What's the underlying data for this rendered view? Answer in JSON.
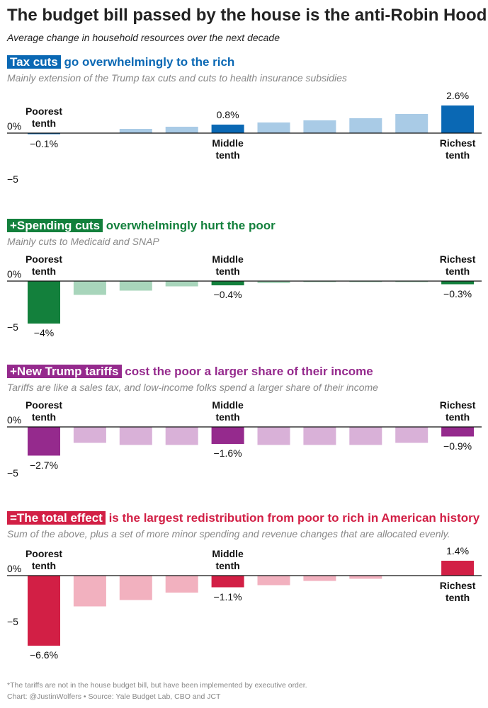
{
  "title": "The budget bill passed by the house is the anti-Robin Hood",
  "subtitle": "Average change in household resources over the next decade",
  "notes": [
    "*The tariffs are not in the house budget bill, but have been implemented by executive order.",
    "Chart: @JustinWolfers • Source: Yale Budget Lab, CBO and JCT"
  ],
  "chart_data": [
    {
      "type": "bar",
      "title_tag": "Tax cuts",
      "title": "go overwhelmingly to the rich",
      "subtitle": "Mainly extension of the Trump tax cuts and cuts to health insurance subsidies",
      "categories": [
        "Poorest tenth",
        null,
        null,
        null,
        "Middle tenth",
        null,
        null,
        null,
        null,
        "Richest tenth"
      ],
      "values": [
        -0.1,
        0,
        0.4,
        0.6,
        0.8,
        1.0,
        1.2,
        1.4,
        1.8,
        2.6
      ],
      "value_labels": [
        "−0.1%",
        null,
        null,
        null,
        "0.8%",
        null,
        null,
        null,
        null,
        "2.6%"
      ],
      "color": "#a9cbe6",
      "highlight_color": "#0a68b4",
      "ylim": [
        -5,
        3
      ],
      "yticks": [
        {
          "value": 0,
          "label": "0%"
        },
        {
          "value": -5,
          "label": "−5"
        }
      ]
    },
    {
      "type": "bar",
      "title_tag": "+Spending cuts",
      "title": "overwhelmingly hurt the poor",
      "subtitle": "Mainly cuts to Medicaid and SNAP",
      "categories": [
        "Poorest tenth",
        null,
        null,
        null,
        "Middle tenth",
        null,
        null,
        null,
        null,
        "Richest tenth"
      ],
      "values": [
        -4,
        -1.3,
        -0.9,
        -0.5,
        -0.4,
        -0.2,
        -0.1,
        -0.1,
        -0.1,
        -0.3
      ],
      "value_labels": [
        "−4%",
        null,
        null,
        null,
        "−0.4%",
        null,
        null,
        null,
        null,
        "−0.3%"
      ],
      "color": "#a8d5bb",
      "highlight_color": "#13803c",
      "ylim": [
        -5,
        0
      ],
      "yticks": [
        {
          "value": 0,
          "label": "0%"
        },
        {
          "value": -5,
          "label": "−5"
        }
      ]
    },
    {
      "type": "bar",
      "title_tag": "+New Trump tariffs",
      "title": "cost the poor a larger share of their income",
      "subtitle": "Tariffs are like a sales tax, and low-income folks spend a larger share of their income",
      "categories": [
        "Poorest tenth",
        null,
        null,
        null,
        "Middle tenth",
        null,
        null,
        null,
        null,
        "Richest tenth"
      ],
      "values": [
        -2.7,
        -1.5,
        -1.7,
        -1.7,
        -1.6,
        -1.7,
        -1.7,
        -1.7,
        -1.5,
        -0.9
      ],
      "value_labels": [
        "−2.7%",
        null,
        null,
        null,
        "−1.6%",
        null,
        null,
        null,
        null,
        "−0.9%"
      ],
      "color": "#d9b1d8",
      "highlight_color": "#952a8d",
      "ylim": [
        -5,
        0
      ],
      "yticks": [
        {
          "value": 0,
          "label": "0%"
        },
        {
          "value": -5,
          "label": "−5"
        }
      ]
    },
    {
      "type": "bar",
      "title_tag": "=The total effect",
      "title": "is the largest redistribution from poor to rich in American history",
      "subtitle": "Sum of the above, plus a set of more minor spending and revenue changes that are allocated evenly.",
      "categories": [
        "Poorest tenth",
        null,
        null,
        null,
        "Middle tenth",
        null,
        null,
        null,
        null,
        "Richest tenth"
      ],
      "values": [
        -6.6,
        -2.9,
        -2.3,
        -1.6,
        -1.1,
        -0.9,
        -0.5,
        -0.3,
        0,
        1.4
      ],
      "value_labels": [
        "−6.6%",
        null,
        null,
        null,
        "−1.1%",
        null,
        null,
        null,
        null,
        "1.4%"
      ],
      "color": "#f2b1bf",
      "highlight_color": "#d21f45",
      "ylim": [
        -7,
        1.5
      ],
      "yticks": [
        {
          "value": 0,
          "label": "0%"
        },
        {
          "value": -5,
          "label": "−5"
        }
      ]
    }
  ]
}
